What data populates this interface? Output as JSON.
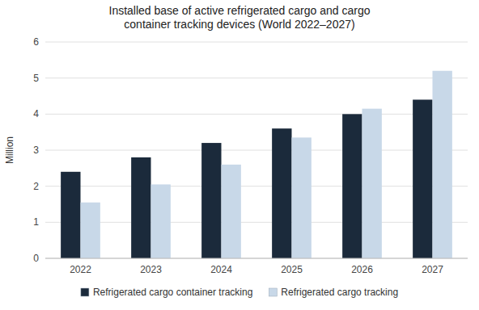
{
  "chart_data": {
    "type": "bar",
    "title": "Installed base of active refrigerated cargo and cargo\ncontainer tracking devices (World 2022–2027)",
    "ylabel": "Million",
    "categories": [
      "2022",
      "2023",
      "2024",
      "2025",
      "2026",
      "2027"
    ],
    "series": [
      {
        "name": "Refrigerated cargo container tracking",
        "color": "#1b2a3b",
        "values": [
          2.4,
          2.8,
          3.2,
          3.6,
          4.0,
          4.4
        ]
      },
      {
        "name": "Refrigerated cargo tracking",
        "color": "#c8d8e8",
        "values": [
          1.55,
          2.05,
          2.6,
          3.35,
          4.15,
          5.2
        ]
      }
    ],
    "ylim": [
      0,
      6
    ],
    "yticks": [
      0,
      1,
      2,
      3,
      4,
      5,
      6
    ],
    "grid": true,
    "legend": "bottom"
  }
}
